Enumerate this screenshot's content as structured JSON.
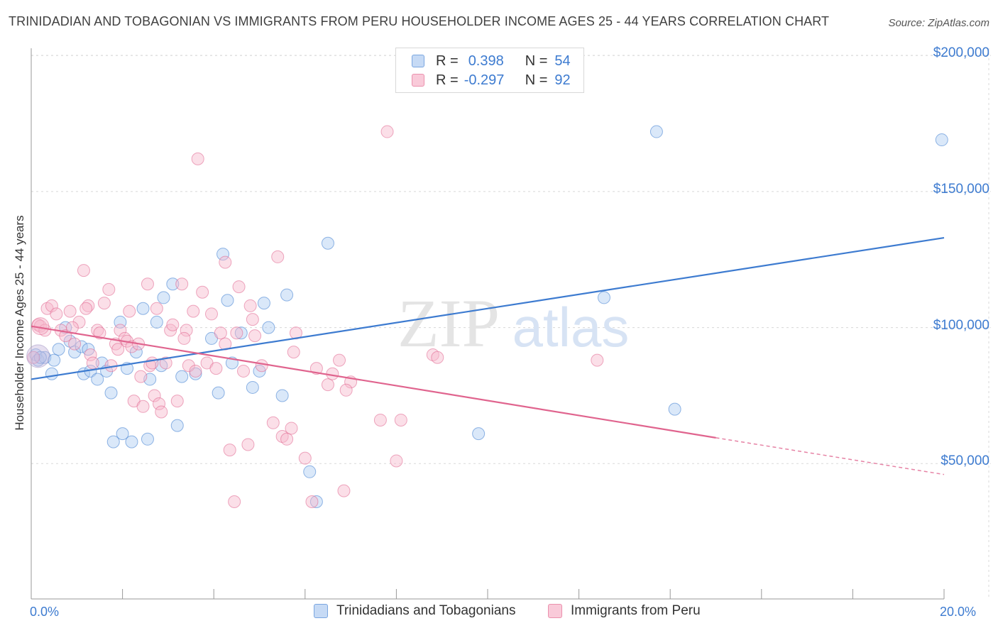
{
  "header": {
    "title": "TRINIDADIAN AND TOBAGONIAN VS IMMIGRANTS FROM PERU HOUSEHOLDER INCOME AGES 25 - 44 YEARS CORRELATION CHART",
    "source": "Source: ZipAtlas.com"
  },
  "watermark": {
    "zip": "ZIP",
    "atlas": "atlas"
  },
  "legend": {
    "series1": {
      "r_label": "R =",
      "r_value": "0.398",
      "n_label": "N =",
      "n_value": "54"
    },
    "series2": {
      "r_label": "R =",
      "r_value": "-0.297",
      "n_label": "N =",
      "n_value": "92"
    }
  },
  "bottom_legend": {
    "series1": "Trinidadians and Tobagonians",
    "series2": "Immigrants from Peru"
  },
  "colors": {
    "blue": "#3d7bd0",
    "blue_fill": "#aecbf2",
    "pink": "#e0648e",
    "pink_fill": "#f6b7cb",
    "grid": "#d8d8d8"
  },
  "chart_data": {
    "type": "scatter",
    "title": "TRINIDADIAN AND TOBAGONIAN VS IMMIGRANTS FROM PERU HOUSEHOLDER INCOME AGES 25 - 44 YEARS CORRELATION CHART",
    "xlabel": "",
    "ylabel": "Householder Income Ages 25 - 44 years",
    "xlim": [
      0,
      20
    ],
    "ylim": [
      0,
      210000
    ],
    "x_tick_labels": [
      "0.0%",
      "20.0%"
    ],
    "y_ticks": [
      {
        "value": 50000,
        "label": "$50,000"
      },
      {
        "value": 100000,
        "label": "$100,000"
      },
      {
        "value": 150000,
        "label": "$150,000"
      },
      {
        "value": 200000,
        "label": "$200,000"
      }
    ],
    "grid": true,
    "series": [
      {
        "name": "Trinidadians and Tobagonians",
        "color": "#3d7bd0",
        "fill": "#aecbf2",
        "trend": {
          "x0": 0.0,
          "y0": 81000,
          "x1": 20.0,
          "y1": 133000,
          "dashed_from": null
        },
        "points": [
          [
            0.1,
            90000
          ],
          [
            0.15,
            88000
          ],
          [
            0.3,
            89000
          ],
          [
            0.45,
            83000
          ],
          [
            0.6,
            92000
          ],
          [
            0.75,
            100000
          ],
          [
            0.85,
            95000
          ],
          [
            0.95,
            91000
          ],
          [
            1.1,
            93000
          ],
          [
            1.15,
            83000
          ],
          [
            1.25,
            92000
          ],
          [
            1.3,
            84000
          ],
          [
            1.45,
            81000
          ],
          [
            1.55,
            87000
          ],
          [
            1.65,
            84000
          ],
          [
            1.75,
            76000
          ],
          [
            1.8,
            58000
          ],
          [
            1.95,
            102000
          ],
          [
            2.0,
            61000
          ],
          [
            2.1,
            85000
          ],
          [
            2.2,
            58000
          ],
          [
            2.3,
            91000
          ],
          [
            2.45,
            107000
          ],
          [
            2.55,
            59000
          ],
          [
            2.6,
            81000
          ],
          [
            2.75,
            102000
          ],
          [
            2.85,
            86000
          ],
          [
            2.9,
            111000
          ],
          [
            3.1,
            116000
          ],
          [
            3.2,
            64000
          ],
          [
            3.3,
            82000
          ],
          [
            3.6,
            83000
          ],
          [
            3.95,
            96000
          ],
          [
            4.1,
            76000
          ],
          [
            4.2,
            127000
          ],
          [
            4.3,
            110000
          ],
          [
            4.4,
            87000
          ],
          [
            4.6,
            98000
          ],
          [
            4.85,
            78000
          ],
          [
            5.0,
            84000
          ],
          [
            5.1,
            109000
          ],
          [
            5.2,
            100000
          ],
          [
            5.5,
            75000
          ],
          [
            5.6,
            112000
          ],
          [
            6.1,
            47000
          ],
          [
            6.25,
            36000
          ],
          [
            6.5,
            131000
          ],
          [
            9.8,
            61000
          ],
          [
            12.55,
            111000
          ],
          [
            13.7,
            172000
          ],
          [
            14.1,
            70000
          ],
          [
            19.95,
            169000
          ],
          [
            0.2,
            89000
          ],
          [
            0.5,
            88000
          ]
        ]
      },
      {
        "name": "Immigrants from Peru",
        "color": "#e0648e",
        "fill": "#f6b7cb",
        "trend": {
          "x0": 0.0,
          "y0": 100500,
          "x1": 15.0,
          "y1": 59500,
          "dashed_from": 15.0,
          "x2": 20.0,
          "y2": 46000
        },
        "points": [
          [
            0.05,
            89000
          ],
          [
            0.15,
            101000
          ],
          [
            0.2,
            100500
          ],
          [
            0.35,
            107000
          ],
          [
            0.45,
            108000
          ],
          [
            0.55,
            105000
          ],
          [
            0.65,
            99000
          ],
          [
            0.75,
            97000
          ],
          [
            0.85,
            106000
          ],
          [
            0.95,
            94000
          ],
          [
            1.05,
            102000
          ],
          [
            1.15,
            121000
          ],
          [
            1.25,
            108000
          ],
          [
            1.3,
            90000
          ],
          [
            1.35,
            87000
          ],
          [
            1.45,
            99000
          ],
          [
            1.5,
            98000
          ],
          [
            1.6,
            109000
          ],
          [
            1.7,
            114000
          ],
          [
            1.75,
            86000
          ],
          [
            1.85,
            94000
          ],
          [
            1.95,
            99000
          ],
          [
            2.05,
            96000
          ],
          [
            2.1,
            95000
          ],
          [
            2.2,
            93000
          ],
          [
            2.25,
            73000
          ],
          [
            2.35,
            94000
          ],
          [
            2.45,
            71000
          ],
          [
            2.55,
            116000
          ],
          [
            2.6,
            86000
          ],
          [
            2.7,
            75000
          ],
          [
            2.75,
            107000
          ],
          [
            2.8,
            72000
          ],
          [
            2.85,
            69000
          ],
          [
            2.95,
            87000
          ],
          [
            3.05,
            99000
          ],
          [
            3.1,
            101000
          ],
          [
            3.2,
            73000
          ],
          [
            3.3,
            116000
          ],
          [
            3.4,
            99000
          ],
          [
            3.45,
            86000
          ],
          [
            3.55,
            106000
          ],
          [
            3.6,
            84000
          ],
          [
            3.75,
            113000
          ],
          [
            3.85,
            87000
          ],
          [
            3.95,
            105000
          ],
          [
            4.05,
            85000
          ],
          [
            4.15,
            98000
          ],
          [
            4.25,
            124000
          ],
          [
            4.35,
            55000
          ],
          [
            4.45,
            36000
          ],
          [
            4.5,
            98000
          ],
          [
            4.55,
            115000
          ],
          [
            4.65,
            84000
          ],
          [
            4.75,
            57000
          ],
          [
            4.8,
            108000
          ],
          [
            4.85,
            103000
          ],
          [
            5.05,
            86000
          ],
          [
            5.3,
            65000
          ],
          [
            5.4,
            126000
          ],
          [
            5.5,
            60000
          ],
          [
            5.6,
            59000
          ],
          [
            5.7,
            63000
          ],
          [
            5.8,
            98000
          ],
          [
            6.0,
            52000
          ],
          [
            6.15,
            36000
          ],
          [
            6.25,
            85000
          ],
          [
            6.5,
            79000
          ],
          [
            6.75,
            88000
          ],
          [
            6.85,
            40000
          ],
          [
            7.0,
            80000
          ],
          [
            7.65,
            66000
          ],
          [
            7.8,
            172000
          ],
          [
            8.0,
            51000
          ],
          [
            8.1,
            66000
          ],
          [
            8.8,
            90000
          ],
          [
            8.9,
            89000
          ],
          [
            12.4,
            88000
          ],
          [
            3.65,
            162000
          ],
          [
            0.3,
            99000
          ],
          [
            0.9,
            100000
          ],
          [
            1.2,
            107000
          ],
          [
            2.15,
            106000
          ],
          [
            2.65,
            87000
          ],
          [
            3.35,
            96000
          ],
          [
            4.25,
            94000
          ],
          [
            4.9,
            97000
          ],
          [
            5.75,
            91000
          ],
          [
            6.6,
            83000
          ],
          [
            6.9,
            77000
          ],
          [
            1.9,
            92000
          ],
          [
            2.4,
            82000
          ]
        ]
      }
    ]
  }
}
